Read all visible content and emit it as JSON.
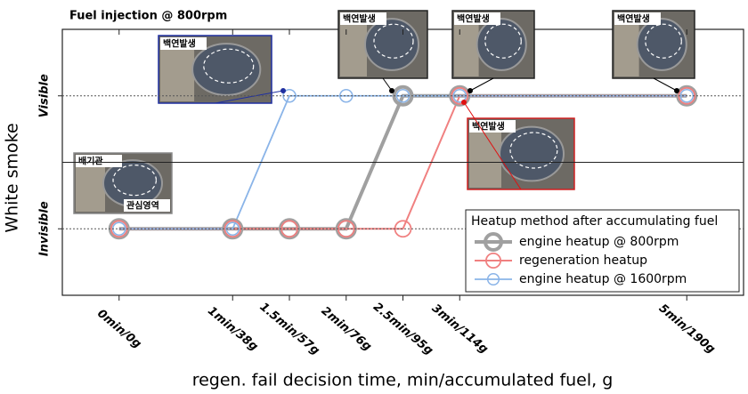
{
  "chart_data": {
    "type": "line",
    "title": "Fuel injection @ 800rpm",
    "x_label": "regen. fail decision time, min/accumulated fuel, g",
    "y_label": "White smoke",
    "xlim": [
      -0.5,
      5.5
    ],
    "xticks": [
      {
        "value": 0,
        "label": "0min/0g"
      },
      {
        "value": 1,
        "label": "1min/38g"
      },
      {
        "value": 1.5,
        "label": "1.5min/57g"
      },
      {
        "value": 2,
        "label": "2min/76g"
      },
      {
        "value": 2.5,
        "label": "2.5min/95g"
      },
      {
        "value": 3,
        "label": "3min/114g"
      },
      {
        "value": 5,
        "label": "5min/190g"
      }
    ],
    "ylim": [
      -0.5,
      1.5
    ],
    "yticks": [
      {
        "value": 0,
        "label": "Invisible"
      },
      {
        "value": 1,
        "label": "Visible"
      }
    ],
    "reference_line": 0.5,
    "legend_title": "Heatup method after accumulating fuel",
    "legend_position": "lower right",
    "series": [
      {
        "name": "engine heatup @ 800rpm",
        "color": "#a0a0a0",
        "x": [
          0,
          1,
          1.5,
          2,
          2.5,
          3,
          5
        ],
        "values": [
          0,
          0,
          0,
          0,
          1,
          1,
          1
        ]
      },
      {
        "name": "regeneration heatup",
        "color": "#f08080",
        "x": [
          0,
          1,
          1.5,
          2,
          2.5,
          3,
          5
        ],
        "values": [
          0,
          0,
          0,
          0,
          0,
          1,
          1
        ]
      },
      {
        "name": "engine heatup @ 1600rpm",
        "color": "#8ab4e8",
        "x": [
          0,
          1,
          1.5,
          2,
          2.5,
          3,
          5
        ],
        "values": [
          0,
          0,
          1,
          1,
          1,
          1,
          1
        ]
      }
    ],
    "annotations": [
      "백연발생",
      "배기관",
      "관심영역",
      "백연발생",
      "백연발생",
      "백연발생",
      "백연발생"
    ]
  }
}
